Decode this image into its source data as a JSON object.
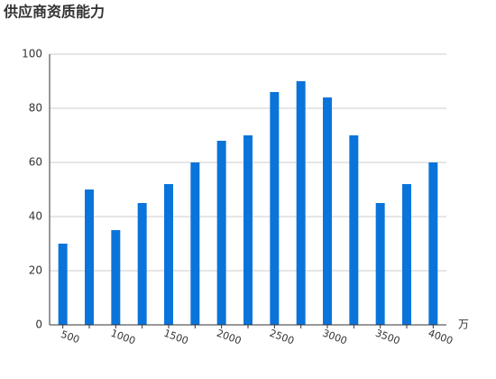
{
  "chart_data": {
    "type": "bar",
    "title": "供应商资质能力",
    "x_label": "万",
    "categories": [
      "500",
      null,
      "1000",
      null,
      "1500",
      null,
      "2000",
      null,
      "2500",
      null,
      "3000",
      null,
      "3500",
      null,
      "4000"
    ],
    "values": [
      30,
      50,
      35,
      45,
      52,
      60,
      68,
      70,
      86,
      90,
      84,
      70,
      45,
      52,
      60
    ],
    "color": "#0a74da",
    "ylim": [
      0,
      100
    ],
    "yticks": [
      0,
      20,
      40,
      60,
      80,
      100
    ],
    "grid": true
  }
}
